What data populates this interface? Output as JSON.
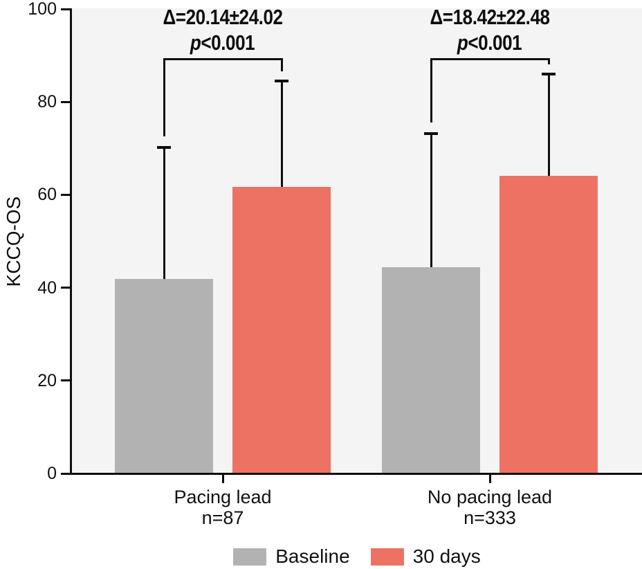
{
  "chart_data": {
    "type": "bar",
    "title": "",
    "ylabel": "KCCQ-OS",
    "xlabel": "",
    "ylim": [
      0,
      100
    ],
    "yticks": [
      0,
      20,
      40,
      60,
      80,
      100
    ],
    "grid": false,
    "legend_position": "bottom",
    "plot_background": "#f4f4f4",
    "bar_style": "grouped with SD error bars and significance brackets",
    "series": [
      {
        "name": "Baseline",
        "color": "#b2b2b2"
      },
      {
        "name": "30 days",
        "color": "#ed7263"
      }
    ],
    "groups": [
      {
        "label": "Pacing lead",
        "n_label": "n=87",
        "delta_annotation": "Δ=20.14±24.02",
        "p_annotation": "p<0.001",
        "bars": [
          {
            "series": "Baseline",
            "value": 41.9,
            "error_top": 70.2
          },
          {
            "series": "30 days",
            "value": 61.7,
            "error_top": 84.5
          }
        ]
      },
      {
        "label": "No pacing lead",
        "n_label": "n=333",
        "delta_annotation": "Δ=18.42±22.48",
        "p_annotation": "p<0.001",
        "bars": [
          {
            "series": "Baseline",
            "value": 44.4,
            "error_top": 73.2
          },
          {
            "series": "30 days",
            "value": 64.1,
            "error_top": 86.0
          }
        ]
      }
    ]
  }
}
